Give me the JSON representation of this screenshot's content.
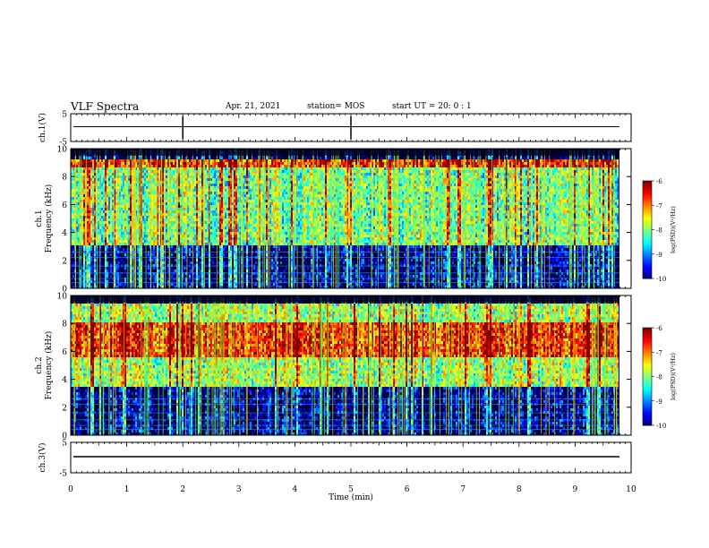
{
  "header": {
    "title": "VLF Spectra",
    "date": "Apr. 21, 2021",
    "station": "station= MOS",
    "start": "start  UT =   20: 0  : 1"
  },
  "colors": {
    "background": "#ffffff",
    "axes": "#000000"
  },
  "chart_data": [
    {
      "type": "line",
      "name": "ch1-waveform",
      "ylabel": "ch.1(V)",
      "ylim": [
        -5,
        5
      ],
      "yticks": [
        "5",
        "-5"
      ],
      "x": [
        0,
        10
      ],
      "values": [
        0,
        0
      ]
    },
    {
      "type": "heatmap",
      "name": "ch1-spectrogram",
      "ylabel": "ch.1\nFrequency (kHz)",
      "ylim": [
        0,
        10
      ],
      "yticks": [
        "0",
        "2",
        "4",
        "6",
        "8",
        "10"
      ],
      "xlim": [
        0,
        10
      ],
      "colorbar": {
        "label": "log(PSD)(V²/Hz)",
        "ticks": [
          "-6",
          "-7",
          "-8",
          "-9",
          "-10"
        ],
        "range": [
          -10,
          -6
        ]
      },
      "bands": [
        {
          "freq_khz": [
            8.6,
            9.2
          ],
          "level": -6.6,
          "comment": ""
        },
        {
          "freq_khz": [
            3.0,
            8.6
          ],
          "level": -8.0,
          "comment": ""
        },
        {
          "freq_khz": [
            0.0,
            3.0
          ],
          "level": -9.7,
          "comment": ""
        }
      ]
    },
    {
      "type": "heatmap",
      "name": "ch2-spectrogram",
      "ylabel": "ch.2\nFrequency (kHz)",
      "ylim": [
        0,
        10
      ],
      "yticks": [
        "0",
        "2",
        "4",
        "6",
        "8",
        "10"
      ],
      "xlim": [
        0,
        10
      ],
      "colorbar": {
        "label": "log(PSD)(V²/Hz)",
        "ticks": [
          "-6",
          "-7",
          "-8",
          "-9",
          "-10"
        ],
        "range": [
          -10,
          -6
        ]
      },
      "bands": [
        {
          "freq_khz": [
            5.5,
            8.0
          ],
          "level": -6.6,
          "comment": ""
        },
        {
          "freq_khz": [
            3.5,
            9.5
          ],
          "level": -7.8,
          "comment": ""
        },
        {
          "freq_khz": [
            0.0,
            3.5
          ],
          "level": -9.7,
          "comment": ""
        }
      ]
    },
    {
      "type": "line",
      "name": "ch3-waveform",
      "ylabel": "ch.3(V)",
      "ylim": [
        -5,
        5
      ],
      "yticks": [
        "5",
        "-5"
      ],
      "x": [
        0,
        10
      ],
      "values": [
        0,
        0
      ]
    }
  ],
  "xaxis": {
    "label": "Time  (min)",
    "ticks": [
      "0",
      "1",
      "2",
      "3",
      "4",
      "5",
      "6",
      "7",
      "8",
      "9",
      "10"
    ]
  }
}
